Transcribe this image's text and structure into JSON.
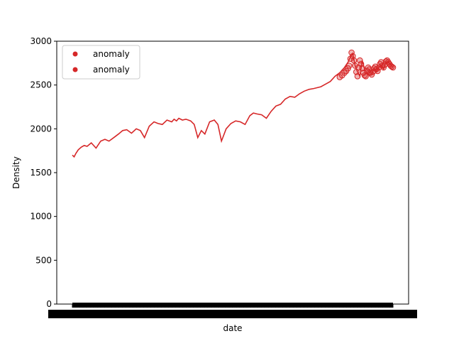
{
  "chart_data": {
    "type": "line",
    "title": "",
    "xlabel": "date",
    "ylabel": "Density",
    "ylim": [
      0,
      3000
    ],
    "yticks": [
      0,
      500,
      1000,
      1500,
      2000,
      2500,
      3000
    ],
    "grid": false,
    "legend_position": "top-left",
    "legend": [
      {
        "label": "anomaly",
        "color": "#d62728"
      },
      {
        "label": "anomaly",
        "color": "#d62728"
      }
    ],
    "series": [
      {
        "color": "#d62728",
        "x_index": [
          0,
          3,
          6,
          10,
          15,
          20,
          25,
          32,
          40,
          48,
          55,
          62,
          70,
          78,
          85,
          92,
          100,
          108,
          115,
          122,
          130,
          138,
          145,
          152,
          160,
          168,
          172,
          176,
          180,
          186,
          192,
          200,
          206,
          212,
          218,
          224,
          232,
          240,
          246,
          252,
          260,
          268,
          276,
          284,
          292,
          300,
          306,
          312,
          320,
          328,
          336,
          344,
          352,
          360,
          368,
          376,
          384,
          392,
          400,
          408,
          414,
          420,
          428,
          436,
          444,
          452,
          460,
          466,
          470,
          474,
          478,
          482,
          486,
          490,
          494,
          498,
          502,
          506,
          510,
          514,
          518,
          522,
          526,
          530,
          534,
          538,
          542
        ],
        "values": [
          1700,
          1680,
          1720,
          1760,
          1790,
          1810,
          1800,
          1840,
          1780,
          1860,
          1880,
          1860,
          1900,
          1940,
          1980,
          1990,
          1950,
          2000,
          1980,
          1900,
          2030,
          2080,
          2060,
          2050,
          2100,
          2080,
          2110,
          2090,
          2120,
          2100,
          2110,
          2090,
          2050,
          1900,
          1980,
          1940,
          2080,
          2100,
          2050,
          1860,
          2000,
          2060,
          2090,
          2080,
          2050,
          2150,
          2180,
          2170,
          2160,
          2120,
          2200,
          2260,
          2280,
          2340,
          2370,
          2360,
          2400,
          2430,
          2450,
          2460,
          2470,
          2480,
          2510,
          2540,
          2600,
          2640,
          2700,
          2760,
          2820,
          2860,
          2720,
          2650,
          2600,
          2780,
          2680,
          2640,
          2610,
          2630,
          2690,
          2650,
          2700,
          2720,
          2680,
          2760,
          2770,
          2730,
          2700
        ]
      }
    ],
    "anomalies": {
      "color": "#d62728",
      "x_index": [
        452,
        456,
        460,
        463,
        466,
        468,
        470,
        472,
        474,
        476,
        478,
        480,
        482,
        484,
        486,
        488,
        490,
        492,
        494,
        496,
        498,
        500,
        502,
        504,
        506,
        508,
        510,
        512,
        514,
        516,
        518,
        520,
        522,
        524,
        526,
        528,
        530,
        532,
        534,
        536,
        538,
        540,
        542
      ],
      "values": [
        2590,
        2610,
        2640,
        2660,
        2690,
        2720,
        2800,
        2870,
        2830,
        2780,
        2720,
        2650,
        2600,
        2700,
        2780,
        2740,
        2690,
        2640,
        2610,
        2600,
        2660,
        2700,
        2680,
        2640,
        2620,
        2650,
        2690,
        2710,
        2680,
        2660,
        2700,
        2740,
        2760,
        2720,
        2700,
        2730,
        2770,
        2780,
        2760,
        2740,
        2720,
        2710,
        2700
      ]
    },
    "x_count": 543
  }
}
